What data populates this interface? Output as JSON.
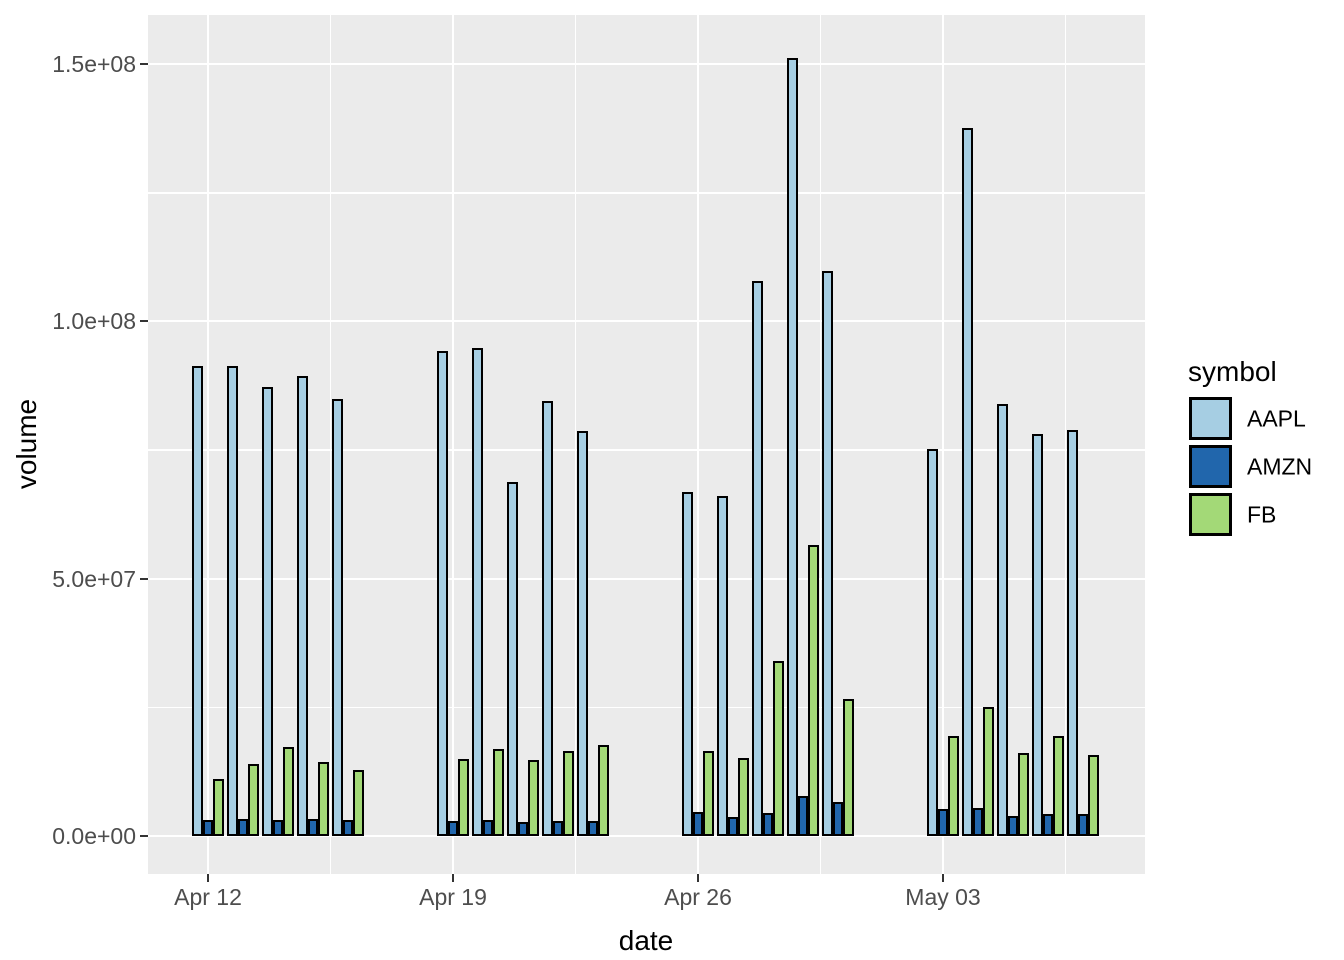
{
  "chart_data": {
    "type": "bar",
    "title": "",
    "xlabel": "date",
    "ylabel": "volume",
    "legend_title": "symbol",
    "legend_position": "right",
    "grid": true,
    "panel_bg": "#ebebeb",
    "gridline_color": "#ffffff",
    "bar_outline_color": "#000000",
    "axis_text_color": "#4d4d4d",
    "x_tick_labels": [
      "Apr 12",
      "Apr 19",
      "Apr 26",
      "May 03"
    ],
    "y_tick_labels": [
      "0.0e+00",
      "5.0e+07",
      "1.0e+08",
      "1.5e+08"
    ],
    "y_tick_values": [
      0,
      50000000,
      100000000,
      150000000
    ],
    "y_minor_values": [
      25000000,
      75000000,
      125000000
    ],
    "ylim": [
      0,
      159600000
    ],
    "dates": [
      "Apr 12",
      "Apr 13",
      "Apr 14",
      "Apr 15",
      "Apr 16",
      "Apr 19",
      "Apr 20",
      "Apr 21",
      "Apr 22",
      "Apr 23",
      "Apr 26",
      "Apr 27",
      "Apr 28",
      "Apr 29",
      "Apr 30",
      "May 03",
      "May 04",
      "May 05",
      "May 06",
      "May 07"
    ],
    "series": [
      {
        "name": "AAPL",
        "color": "#a6cee3",
        "values": [
          91420000,
          91266500,
          87222800,
          89347100,
          84922400,
          94264200,
          94812300,
          68847100,
          84566500,
          78657500,
          66905100,
          66015800,
          107760100,
          151101000,
          109839500,
          75135100,
          137564700,
          84000900,
          78128300,
          78973300
        ]
      },
      {
        "name": "AMZN",
        "color": "#2166ac",
        "values": [
          3153100,
          3334300,
          3141100,
          3325200,
          3186000,
          2954600,
          3118800,
          2676400,
          2863300,
          2822800,
          4617100,
          3648100,
          4489000,
          7818800,
          6576900,
          5244100,
          5363600,
          3839400,
          4319600,
          4294800
        ]
      },
      {
        "name": "FB",
        "color": "#a3d977",
        "values": [
          11100000,
          13950000,
          17300000,
          14400000,
          12900000,
          14900000,
          17000000,
          14750000,
          16500000,
          17700000,
          16539400,
          15096100,
          34023400,
          56539500,
          26579100,
          19528400,
          25087600,
          16069700,
          19488400,
          15774200
        ]
      }
    ]
  }
}
